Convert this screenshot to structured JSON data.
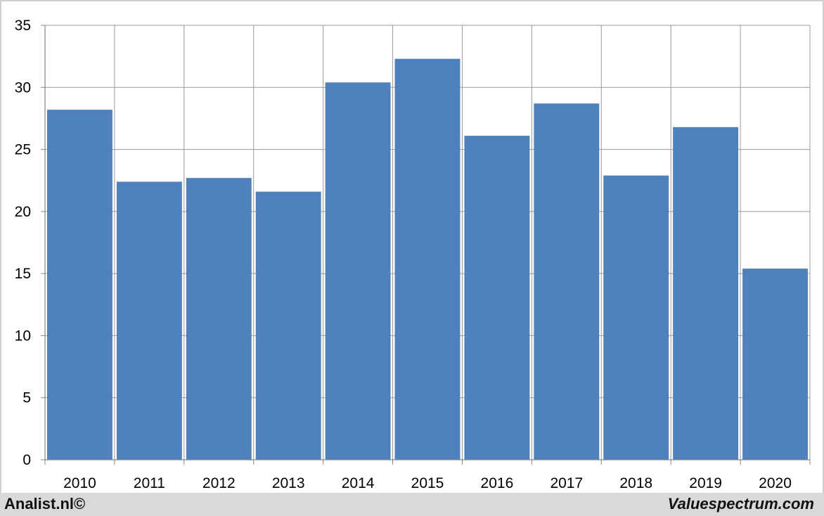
{
  "chart_data": {
    "type": "bar",
    "categories": [
      "2010",
      "2011",
      "2012",
      "2013",
      "2014",
      "2015",
      "2016",
      "2017",
      "2018",
      "2019",
      "2020"
    ],
    "values": [
      28.2,
      22.4,
      22.7,
      21.6,
      30.4,
      32.3,
      26.1,
      28.7,
      22.9,
      26.8,
      15.4
    ],
    "ylim": [
      0,
      35
    ],
    "yticks": [
      0,
      5,
      10,
      15,
      20,
      25,
      30,
      35
    ],
    "grid": true,
    "bar_color": "#4f81bd",
    "grid_color": "#999999"
  },
  "footer": {
    "left": "Analist.nl©",
    "right": "Valuespectrum.com"
  }
}
